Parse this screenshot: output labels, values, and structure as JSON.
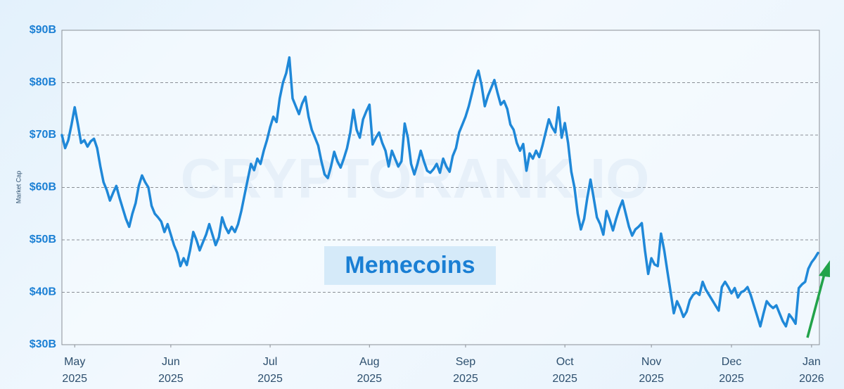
{
  "chart_data": {
    "type": "line",
    "y_label": "Market Cap",
    "annotation": "Memecoins",
    "watermark": "CRYPTORANK.IO",
    "color": "#1f88d8",
    "grid": true,
    "ylim": [
      30,
      90
    ],
    "yticks": [
      {
        "value": 30,
        "label": "$30B"
      },
      {
        "value": 40,
        "label": "$40B"
      },
      {
        "value": 50,
        "label": "$50B"
      },
      {
        "value": 60,
        "label": "$60B"
      },
      {
        "value": 70,
        "label": "$70B"
      },
      {
        "value": 80,
        "label": "$80B"
      },
      {
        "value": 90,
        "label": "$90B"
      }
    ],
    "categories": [
      null,
      null,
      null,
      null,
      "May 2025",
      null,
      null,
      null,
      null,
      null,
      null,
      null,
      null,
      null,
      null,
      null,
      null,
      null,
      null,
      null,
      null,
      null,
      null,
      null,
      null,
      null,
      null,
      null,
      null,
      null,
      null,
      null,
      null,
      null,
      "Jun 2025",
      null,
      null,
      null,
      null,
      null,
      null,
      null,
      null,
      null,
      null,
      null,
      null,
      null,
      null,
      null,
      null,
      null,
      null,
      null,
      null,
      null,
      null,
      null,
      null,
      null,
      null,
      null,
      null,
      null,
      null,
      "Jul 2025",
      null,
      null,
      null,
      null,
      null,
      null,
      null,
      null,
      null,
      null,
      null,
      null,
      null,
      null,
      null,
      null,
      null,
      null,
      null,
      null,
      null,
      null,
      null,
      null,
      null,
      null,
      null,
      null,
      null,
      null,
      "Aug 2025",
      null,
      null,
      null,
      null,
      null,
      null,
      null,
      null,
      null,
      null,
      null,
      null,
      null,
      null,
      null,
      null,
      null,
      null,
      null,
      null,
      null,
      null,
      null,
      null,
      null,
      null,
      null,
      null,
      null,
      "Sep 2025",
      null,
      null,
      null,
      null,
      null,
      null,
      null,
      null,
      null,
      null,
      null,
      null,
      null,
      null,
      null,
      null,
      null,
      null,
      null,
      null,
      null,
      null,
      null,
      null,
      null,
      null,
      null,
      null,
      null,
      null,
      "Oct 2025",
      null,
      null,
      null,
      null,
      null,
      null,
      null,
      null,
      null,
      null,
      null,
      null,
      null,
      null,
      null,
      null,
      null,
      null,
      null,
      null,
      null,
      null,
      null,
      null,
      null,
      null,
      "Nov 2025",
      null,
      null,
      null,
      null,
      null,
      null,
      null,
      null,
      null,
      null,
      null,
      null,
      null,
      null,
      null,
      null,
      null,
      null,
      null,
      null,
      null,
      null,
      null,
      null,
      "Dec 2025",
      null,
      null,
      null,
      null,
      null,
      null,
      null,
      null,
      null,
      null,
      null,
      null,
      null,
      null,
      null,
      null,
      null,
      null,
      null,
      null,
      null,
      null,
      null,
      null,
      "Jan 2026",
      null,
      null
    ],
    "values": [
      70,
      67.5,
      69,
      72,
      75.3,
      72,
      68.5,
      69,
      67.8,
      68.8,
      69.3,
      67.5,
      64,
      61,
      59.5,
      57.5,
      59,
      60.3,
      58,
      56,
      54,
      52.5,
      55,
      57,
      60.3,
      62.3,
      61,
      60,
      56.5,
      55,
      54.3,
      53.5,
      51.5,
      53,
      51,
      49,
      47.5,
      45,
      46.5,
      45.2,
      48,
      51.5,
      50,
      48,
      49.5,
      51,
      53,
      51,
      49,
      50.5,
      54.3,
      52.5,
      51.3,
      52.5,
      51.5,
      53,
      55.5,
      58.5,
      61.5,
      64.5,
      63.3,
      65.5,
      64.5,
      67,
      69,
      71.5,
      73.5,
      72.5,
      77,
      80,
      81.8,
      84.8,
      77,
      75.5,
      74,
      76,
      77.3,
      73.5,
      71,
      69.5,
      68,
      65,
      62.5,
      61.8,
      64,
      66.8,
      65,
      63.8,
      65.5,
      67.5,
      70.5,
      74.8,
      71,
      69.5,
      73,
      74.5,
      75.8,
      68.2,
      69.5,
      70.5,
      68.5,
      67,
      64,
      67,
      65.5,
      64,
      65,
      72.2,
      69.5,
      64.5,
      62.5,
      64.5,
      67,
      65,
      63.2,
      62.8,
      63.5,
      64.5,
      62.8,
      65.5,
      64,
      63,
      66,
      67.5,
      70.5,
      72,
      73.5,
      75.5,
      78,
      80.5,
      82.3,
      79.5,
      75.5,
      77.5,
      79,
      80.5,
      78,
      75.8,
      76.5,
      75,
      72,
      71,
      68.5,
      67,
      68.3,
      63.2,
      66.5,
      65.5,
      67,
      65.8,
      68,
      70.5,
      73,
      71.5,
      70.5,
      75.3,
      69.5,
      72.3,
      68.5,
      63,
      60,
      55,
      52,
      54,
      58,
      61.5,
      58,
      54.3,
      53,
      51,
      55.5,
      53.8,
      51.8,
      54,
      56,
      57.5,
      55,
      52.5,
      50.8,
      52,
      52.5,
      53.2,
      48,
      43.5,
      46.5,
      45.3,
      45,
      51.2,
      48,
      44,
      40,
      36,
      38.3,
      37,
      35.3,
      36.3,
      38.5,
      39.5,
      40,
      39.5,
      42,
      40.5,
      39.5,
      38.5,
      37.5,
      36.5,
      41,
      42,
      41,
      39.8,
      40.8,
      39,
      40,
      40.3,
      41,
      39.5,
      37.5,
      35.5,
      33.5,
      36,
      38.3,
      37.5,
      37,
      37.5,
      36,
      34.5,
      33.5,
      35.8,
      35,
      34,
      40.8,
      41.5,
      42,
      44.5,
      45.7,
      46.5,
      47.5
    ]
  }
}
